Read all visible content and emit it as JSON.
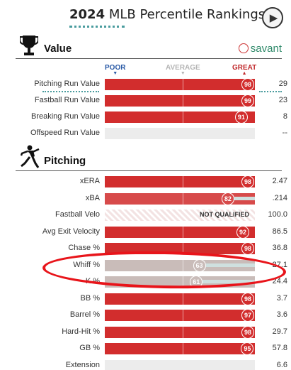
{
  "header": {
    "title_year": "2024",
    "title_rest": " MLB Percentile Rankings"
  },
  "play_button": {
    "icon": "play-icon"
  },
  "sections": {
    "value": {
      "label": "Value",
      "icon": "trophy-icon",
      "brand": "savant"
    },
    "pitching": {
      "label": "Pitching",
      "icon": "pitcher-icon"
    }
  },
  "scale": {
    "poor": "POOR",
    "average": "AVERAGE",
    "great": "GREAT"
  },
  "colors": {
    "great": "#d22d2d",
    "good": "#d74a4a",
    "neutral": "#c9bcb9",
    "accent": "#4a9c9e"
  },
  "value_rows": [
    {
      "label": "Pitching Run Value",
      "percentile": 98,
      "value": "29"
    },
    {
      "label": "Fastball Run Value",
      "percentile": 99,
      "value": "23"
    },
    {
      "label": "Breaking Run Value",
      "percentile": 91,
      "value": "8"
    },
    {
      "label": "Offspeed Run Value",
      "percentile": null,
      "value": "--"
    }
  ],
  "pitching_rows": [
    {
      "label": "xERA",
      "percentile": 98,
      "value": "2.47"
    },
    {
      "label": "xBA",
      "percentile": 82,
      "value": ".214"
    },
    {
      "label": "Fastball Velo",
      "percentile": null,
      "value": "100.0",
      "note": "NOT QUALIFIED"
    },
    {
      "label": "Avg Exit Velocity",
      "percentile": 92,
      "value": "86.5"
    },
    {
      "label": "Chase %",
      "percentile": 98,
      "value": "36.8"
    },
    {
      "label": "Whiff %",
      "percentile": 63,
      "value": "27.1"
    },
    {
      "label": "K %",
      "percentile": 61,
      "value": "24.4"
    },
    {
      "label": "BB %",
      "percentile": 98,
      "value": "3.7"
    },
    {
      "label": "Barrel %",
      "percentile": 97,
      "value": "3.6"
    },
    {
      "label": "Hard-Hit %",
      "percentile": 98,
      "value": "29.7"
    },
    {
      "label": "GB %",
      "percentile": 95,
      "value": "57.8"
    },
    {
      "label": "Extension",
      "percentile": null,
      "value": "6.6"
    }
  ]
}
